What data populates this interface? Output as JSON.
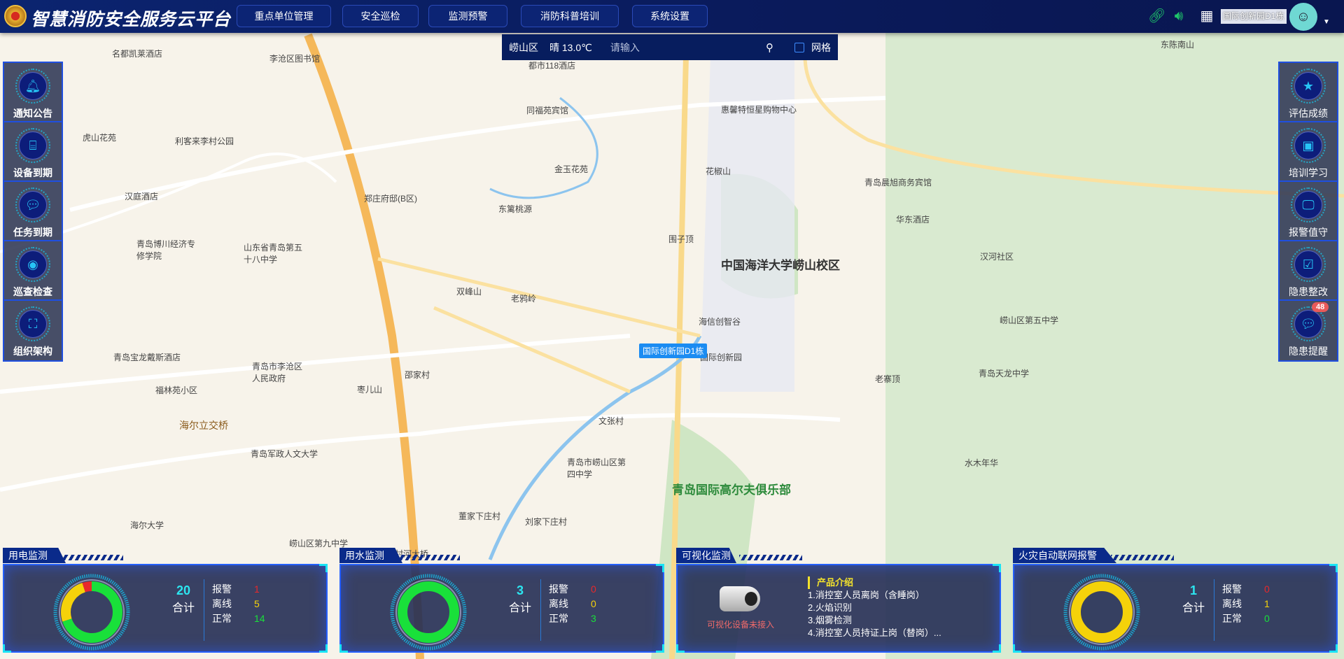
{
  "header": {
    "title": "智慧消防安全服务云平台",
    "nav": [
      "重点单位管理",
      "安全巡检",
      "监测预警",
      "消防科普培训",
      "系统设置"
    ],
    "icons": [
      "link-icon",
      "sound-icon",
      "qrcode-icon"
    ],
    "location": "国际创新园D1栋"
  },
  "search": {
    "district": "崂山区",
    "weather": "晴 13.0℃",
    "placeholder": "请输入",
    "grid_label": "网格",
    "grid_checked": false
  },
  "left_sidebar": [
    {
      "label": "通知公告",
      "icon": "bell-icon"
    },
    {
      "label": "设备到期",
      "icon": "router-icon"
    },
    {
      "label": "任务到期",
      "icon": "chat-icon"
    },
    {
      "label": "巡查检查",
      "icon": "eye-icon"
    },
    {
      "label": "组织架构",
      "icon": "org-chart-icon"
    }
  ],
  "right_sidebar": [
    {
      "label": "评估成绩",
      "icon": "bookmark-star-icon"
    },
    {
      "label": "培训学习",
      "icon": "teacher-board-icon"
    },
    {
      "label": "报警值守",
      "icon": "monitor-icon"
    },
    {
      "label": "隐患整改",
      "icon": "checklist-icon"
    },
    {
      "label": "隐患提醒",
      "icon": "chat-icon",
      "badge": "48"
    }
  ],
  "map": {
    "marker": "国际创新园D1栋",
    "labels": [
      "名都凯莱酒店",
      "李沧区图书馆",
      "都市118酒店",
      "同福苑宾馆",
      "惠馨特恒星购物中心",
      "东陈南山",
      "虎山花苑",
      "利客来李村公园",
      "金玉花苑",
      "花椒山",
      "中国海洋大学崂山校区",
      "青岛晨旭商务宾馆",
      "汉庭酒店",
      "郑庄府邸(B区)",
      "东篱桃源",
      "华东酒店",
      "青岛博川经济专修学院",
      "山东省青岛第五十八中学",
      "围子顶",
      "汉河社区",
      "双峰山",
      "老鸦岭",
      "海信创智谷",
      "崂山区第五中学",
      "青岛宝龙戴斯酒店",
      "国际创新园",
      "青岛市李沧区人民政府",
      "枣儿山",
      "老寨顶",
      "青岛天龙中学",
      "福林苑小区",
      "邵家村",
      "文张村",
      "海尔立交桥",
      "青岛军政人文大学",
      "青岛市崂山区第四中学",
      "水木年华",
      "海尔大学",
      "董家下庄村",
      "刘家下庄村",
      "崂山区第九中学",
      "张村河大桥",
      "青岛国际高尔夫俱乐部",
      "中国海洋大学崂山校区"
    ]
  },
  "panels": [
    {
      "title": "用电监测",
      "total": "20",
      "total_label": "合计",
      "stats": [
        {
          "label": "报警",
          "value": 1,
          "color": "#e8282b"
        },
        {
          "label": "离线",
          "value": 5,
          "color": "#f5d20a"
        },
        {
          "label": "正常",
          "value": 14,
          "color": "#19e03a"
        }
      ]
    },
    {
      "title": "用水监测",
      "total": "3",
      "total_label": "合计",
      "stats": [
        {
          "label": "报警",
          "value": 0,
          "color": "#e8282b"
        },
        {
          "label": "离线",
          "value": 0,
          "color": "#f5d20a"
        },
        {
          "label": "正常",
          "value": 3,
          "color": "#19e03a"
        }
      ]
    },
    {
      "title": "可视化监测",
      "camera_status": "可视化设备未接入",
      "intro_title": "产品介绍",
      "intro": [
        "1.消控室人员离岗（含睡岗）",
        "2.火焰识别",
        "3.烟雾检测",
        "4.消控室人员持证上岗（替岗）..."
      ]
    },
    {
      "title": "火灾自动联网报警",
      "total": "1",
      "total_label": "合计",
      "stats": [
        {
          "label": "报警",
          "value": 0,
          "color": "#e8282b"
        },
        {
          "label": "离线",
          "value": 1,
          "color": "#f5d20a"
        },
        {
          "label": "正常",
          "value": 0,
          "color": "#19e03a"
        }
      ]
    }
  ]
}
